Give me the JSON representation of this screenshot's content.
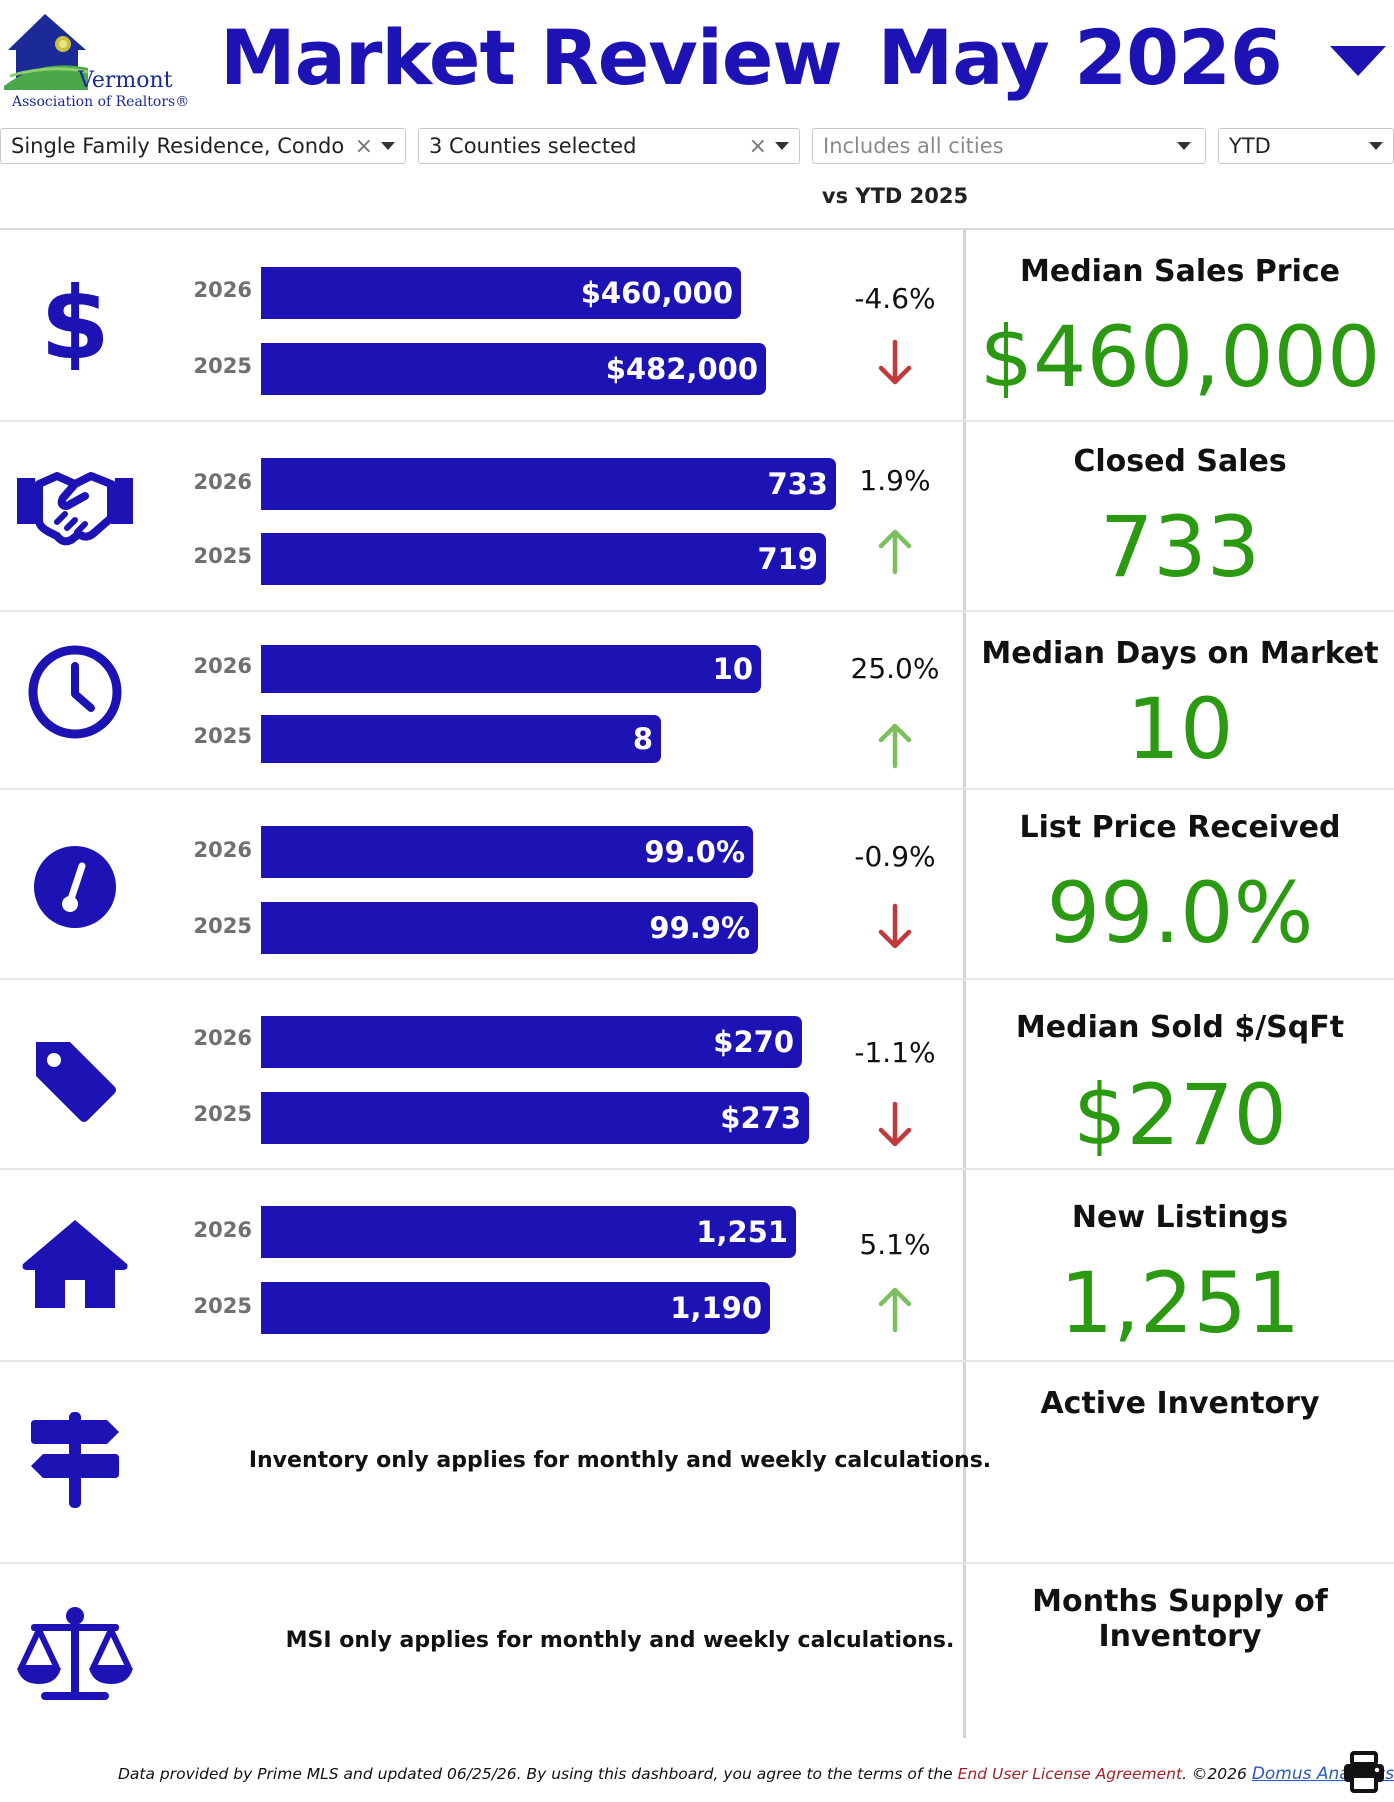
{
  "header": {
    "logo_line1": "Vermont",
    "logo_line2": "Association of Realtors®",
    "title": "Market Review",
    "period": "May 2026"
  },
  "filters": {
    "property_type": "Single Family Residence, Condo",
    "counties": "3 Counties selected",
    "cities_placeholder": "Includes all cities",
    "timeframe": "YTD",
    "clear_glyph": "×"
  },
  "comparison_label": "vs YTD 2025",
  "colors": {
    "accent": "#1d12b3",
    "value_green": "#2b9a12",
    "down_red": "#c0393b",
    "up_green": "#7bbf5e"
  },
  "metrics": [
    {
      "icon": "dollar-icon",
      "label": "Median Sales Price",
      "value": "$460,000",
      "y2026": "2026",
      "y2025": "2025",
      "v2026": "$460,000",
      "v2025": "$482,000",
      "change": "-4.6%",
      "direction": "down"
    },
    {
      "icon": "handshake-icon",
      "label": "Closed Sales",
      "value": "733",
      "y2026": "2026",
      "y2025": "2025",
      "v2026": "733",
      "v2025": "719",
      "change": "1.9%",
      "direction": "up"
    },
    {
      "icon": "clock-icon",
      "label": "Median Days on Market",
      "value": "10",
      "y2026": "2026",
      "y2025": "2025",
      "v2026": "10",
      "v2025": "8",
      "change": "25.0%",
      "direction": "up"
    },
    {
      "icon": "gauge-icon",
      "label": "List Price Received",
      "value": "99.0%",
      "y2026": "2026",
      "y2025": "2025",
      "v2026": "99.0%",
      "v2025": "99.9%",
      "change": "-0.9%",
      "direction": "down"
    },
    {
      "icon": "price-tag-icon",
      "label": "Median Sold $/SqFt",
      "value": "$270",
      "y2026": "2026",
      "y2025": "2025",
      "v2026": "$270",
      "v2025": "$273",
      "change": "-1.1%",
      "direction": "down"
    },
    {
      "icon": "house-icon",
      "label": "New Listings",
      "value": "1,251",
      "y2026": "2026",
      "y2025": "2025",
      "v2026": "1,251",
      "v2025": "1,190",
      "change": "5.1%",
      "direction": "up"
    }
  ],
  "bar_fraction": [
    0.48,
    0.505,
    0.575,
    0.565,
    0.5,
    0.4,
    0.492,
    0.497,
    0.541,
    0.548,
    0.535,
    0.509
  ],
  "inventory": {
    "icon": "signpost-icon",
    "label": "Active Inventory",
    "note": "Inventory only applies for monthly and weekly calculations."
  },
  "msi": {
    "icon": "scale-icon",
    "label": "Months Supply of Inventory",
    "note": "MSI only applies for monthly and weekly calculations."
  },
  "footer": {
    "text1": "Data provided by Prime MLS and updated 06/25/26.  By using this dashboard, you agree to the terms of the ",
    "eula": "End User License Agreement",
    "text2": ".  ©2026 ",
    "domus": "Domus Analytics®",
    "print_icon": "print-icon"
  }
}
